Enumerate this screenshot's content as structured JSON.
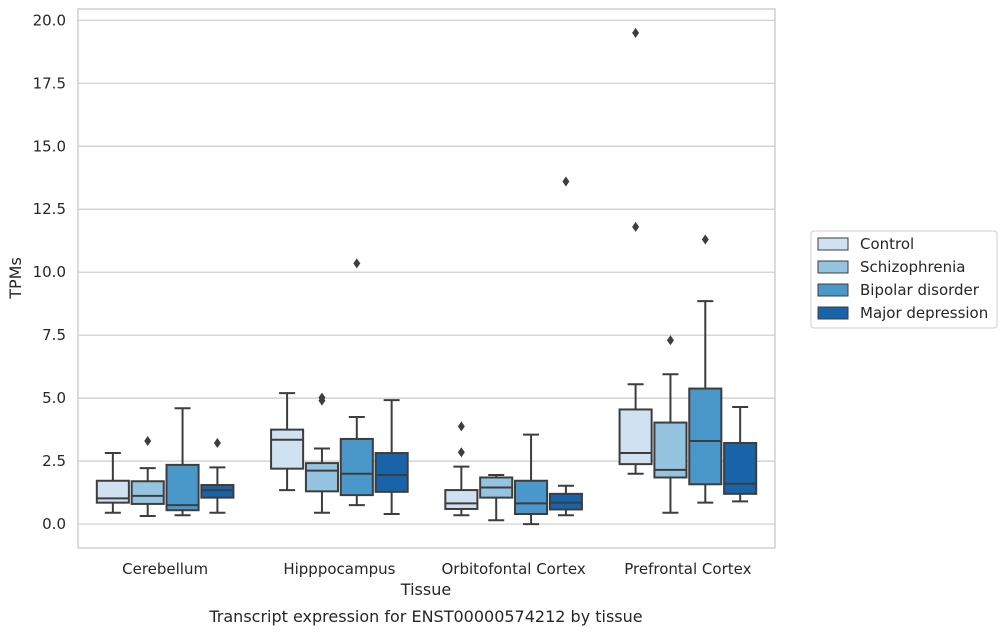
{
  "chart_data": {
    "type": "box",
    "title": "",
    "caption": "Transcript expression for ENST00000574212 by tissue",
    "xlabel": "Tissue",
    "ylabel": "TPMs",
    "ylim": [
      -0.95,
      20.45
    ],
    "yticks": [
      "0.0",
      "2.5",
      "5.0",
      "7.5",
      "10.0",
      "12.5",
      "15.0",
      "17.5",
      "20.0"
    ],
    "grid": "horizontal",
    "legend_position": "right",
    "categories": [
      "Cerebellum",
      "Hipppocampus",
      "Orbitofontal Cortex",
      "Prefrontal Cortex"
    ],
    "series": [
      {
        "name": "Control",
        "color": "#d0e1f2",
        "boxes": [
          {
            "whisker_low": 0.45,
            "q1": 0.85,
            "median": 1.02,
            "q3": 1.72,
            "whisker_high": 2.82,
            "outliers": []
          },
          {
            "whisker_low": 1.35,
            "q1": 2.2,
            "median": 3.35,
            "q3": 3.75,
            "whisker_high": 5.2,
            "outliers": []
          },
          {
            "whisker_low": 0.35,
            "q1": 0.6,
            "median": 0.82,
            "q3": 1.35,
            "whisker_high": 2.28,
            "outliers": [
              2.85,
              3.88
            ]
          },
          {
            "whisker_low": 2.0,
            "q1": 2.38,
            "median": 2.82,
            "q3": 4.55,
            "whisker_high": 5.55,
            "outliers": [
              11.8,
              19.5
            ]
          }
        ]
      },
      {
        "name": "Schizophrenia",
        "color": "#94c4df",
        "boxes": [
          {
            "whisker_low": 0.32,
            "q1": 0.8,
            "median": 1.12,
            "q3": 1.7,
            "whisker_high": 2.22,
            "outliers": [
              3.3
            ]
          },
          {
            "whisker_low": 0.45,
            "q1": 1.3,
            "median": 2.12,
            "q3": 2.42,
            "whisker_high": 3.0,
            "outliers": [
              4.9,
              5.02
            ]
          },
          {
            "whisker_low": 0.15,
            "q1": 1.05,
            "median": 1.45,
            "q3": 1.85,
            "whisker_high": 1.95,
            "outliers": []
          },
          {
            "whisker_low": 0.45,
            "q1": 1.85,
            "median": 2.15,
            "q3": 4.03,
            "whisker_high": 5.95,
            "outliers": [
              7.3
            ]
          }
        ]
      },
      {
        "name": "Bipolar disorder",
        "color": "#4a98c9",
        "boxes": [
          {
            "whisker_low": 0.35,
            "q1": 0.55,
            "median": 0.75,
            "q3": 2.35,
            "whisker_high": 4.6,
            "outliers": []
          },
          {
            "whisker_low": 0.75,
            "q1": 1.15,
            "median": 2.0,
            "q3": 3.38,
            "whisker_high": 4.25,
            "outliers": [
              10.35
            ]
          },
          {
            "whisker_low": 0.0,
            "q1": 0.4,
            "median": 0.82,
            "q3": 1.72,
            "whisker_high": 3.55,
            "outliers": []
          },
          {
            "whisker_low": 0.85,
            "q1": 1.58,
            "median": 3.3,
            "q3": 5.38,
            "whisker_high": 8.85,
            "outliers": [
              11.3
            ]
          }
        ]
      },
      {
        "name": "Major depression",
        "color": "#1764ab",
        "boxes": [
          {
            "whisker_low": 0.45,
            "q1": 1.05,
            "median": 1.35,
            "q3": 1.55,
            "whisker_high": 2.25,
            "outliers": [
              3.22
            ]
          },
          {
            "whisker_low": 0.4,
            "q1": 1.28,
            "median": 1.95,
            "q3": 2.82,
            "whisker_high": 4.92,
            "outliers": []
          },
          {
            "whisker_low": 0.35,
            "q1": 0.58,
            "median": 0.85,
            "q3": 1.2,
            "whisker_high": 1.52,
            "outliers": [
              13.6
            ]
          },
          {
            "whisker_low": 0.9,
            "q1": 1.2,
            "median": 1.6,
            "q3": 3.22,
            "whisker_high": 4.65,
            "outliers": []
          }
        ]
      }
    ]
  }
}
